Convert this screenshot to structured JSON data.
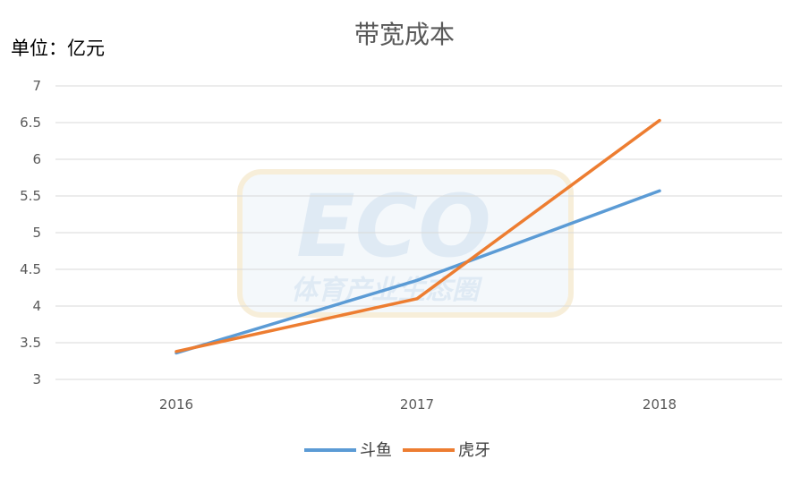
{
  "chart_data": {
    "type": "line",
    "title": "带宽成本",
    "unit_label": "单位：亿元",
    "categories": [
      "2016",
      "2017",
      "2018"
    ],
    "ylim": [
      3,
      7
    ],
    "yticks": [
      "3",
      "3.5",
      "4",
      "4.5",
      "5",
      "5.5",
      "6",
      "6.5",
      "7"
    ],
    "grid": true,
    "legend_position": "bottom",
    "series": [
      {
        "name": "斗鱼",
        "color": "#5b9bd5",
        "values": [
          3.36,
          4.35,
          5.57
        ]
      },
      {
        "name": "虎牙",
        "color": "#ed7d31",
        "values": [
          3.38,
          4.1,
          6.53
        ]
      }
    ]
  },
  "watermark": {
    "logo_text": "ECO",
    "subtitle": "体育产业生态圈"
  }
}
